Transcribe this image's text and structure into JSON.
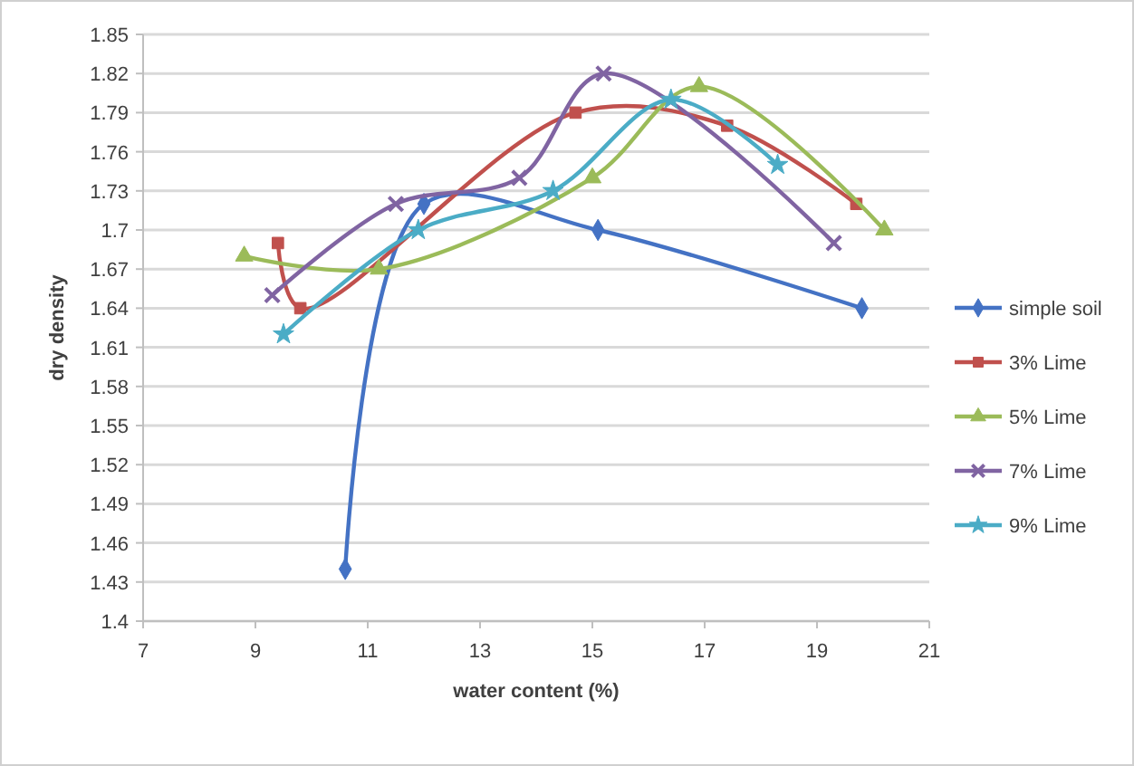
{
  "chart_data": {
    "type": "line",
    "xlabel": "water content (%)",
    "ylabel": "dry density",
    "xlim": [
      7,
      21
    ],
    "xticks": [
      7,
      9,
      11,
      13,
      15,
      17,
      19,
      21
    ],
    "ylim": [
      1.4,
      1.85
    ],
    "yticks": [
      1.4,
      1.43,
      1.46,
      1.49,
      1.52,
      1.55,
      1.58,
      1.61,
      1.64,
      1.67,
      1.7,
      1.73,
      1.76,
      1.79,
      1.82,
      1.85
    ],
    "grid": "y",
    "legend": "right",
    "series": [
      {
        "name": "simple soil",
        "color": "#4472c4",
        "marker": "diamond",
        "x": [
          10.6,
          12,
          15.1,
          19.8
        ],
        "values": [
          1.44,
          1.72,
          1.7,
          1.64
        ]
      },
      {
        "name": "3% Lime",
        "color": "#c0504d",
        "marker": "square",
        "x": [
          9.4,
          9.8,
          14.7,
          17.4,
          19.7
        ],
        "values": [
          1.69,
          1.64,
          1.79,
          1.78,
          1.72
        ]
      },
      {
        "name": "5% Lime",
        "color": "#9bbb59",
        "marker": "triangle",
        "x": [
          8.8,
          11.2,
          15,
          16.9,
          20.2
        ],
        "values": [
          1.68,
          1.67,
          1.74,
          1.81,
          1.7
        ]
      },
      {
        "name": "7% Lime",
        "color": "#8064a2",
        "marker": "cross",
        "x": [
          9.3,
          11.5,
          13.7,
          15.2,
          19.3
        ],
        "values": [
          1.65,
          1.72,
          1.74,
          1.82,
          1.69
        ]
      },
      {
        "name": "9% Lime",
        "color": "#4bacc6",
        "marker": "star",
        "x": [
          9.5,
          11.9,
          14.3,
          16.4,
          18.3
        ],
        "values": [
          1.62,
          1.7,
          1.73,
          1.8,
          1.75
        ]
      }
    ]
  }
}
